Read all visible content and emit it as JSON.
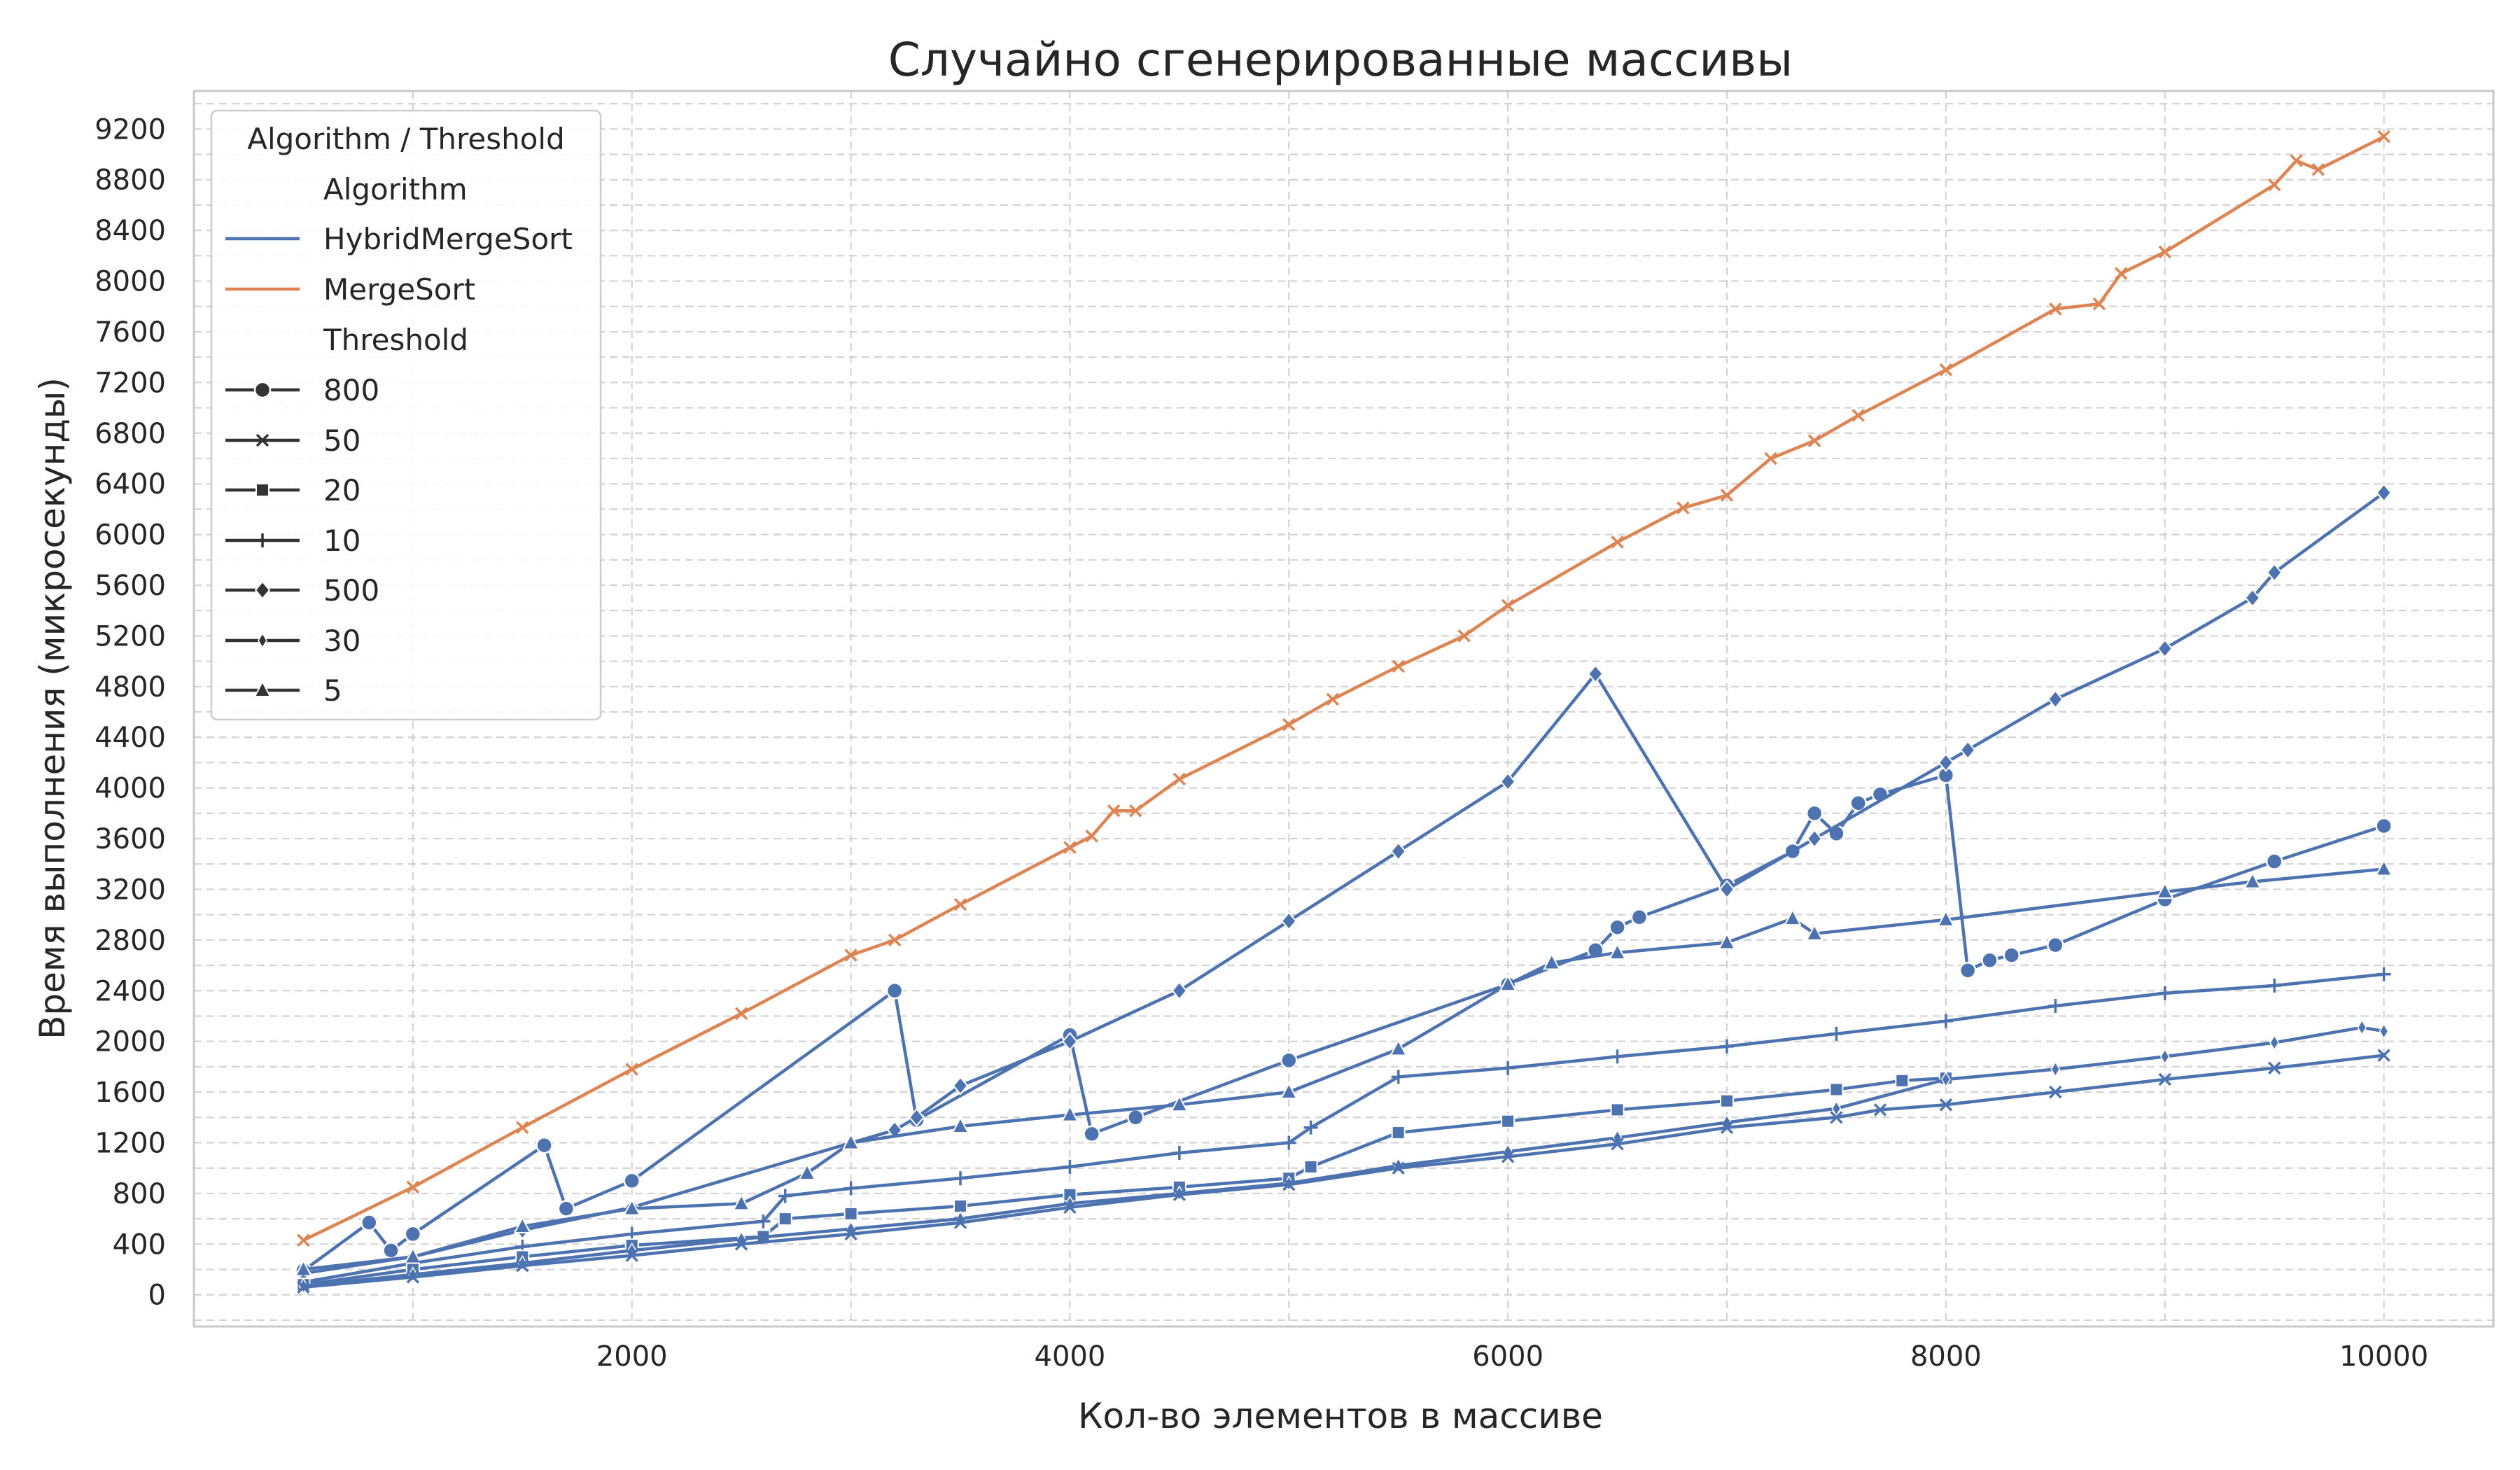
{
  "chart_data": {
    "type": "line",
    "title": "Случайно сгенерированные массивы",
    "xlabel": "Кол-во элементов в массиве",
    "ylabel": "Время выполнения (микросекунды)",
    "xlim": [
      0,
      10500
    ],
    "ylim": [
      -250,
      9500
    ],
    "x_ticks": [
      2000,
      4000,
      6000,
      8000,
      10000
    ],
    "y_ticks": [
      0,
      400,
      800,
      1200,
      1600,
      2000,
      2400,
      2800,
      3200,
      3600,
      4000,
      4400,
      4800,
      5200,
      5600,
      6000,
      6400,
      6800,
      7200,
      7600,
      8000,
      8400,
      8800,
      9200
    ],
    "grid": true,
    "legend": {
      "title": "Algorithm / Threshold",
      "placement": "top-left",
      "algorithm_header": "Algorithm",
      "threshold_header": "Threshold",
      "algorithms": [
        {
          "name": "HybridMergeSort",
          "color": "#4c72b0"
        },
        {
          "name": "MergeSort",
          "color": "#dd8452"
        }
      ],
      "thresholds": [
        {
          "name": "800",
          "marker": "circle"
        },
        {
          "name": "50",
          "marker": "x"
        },
        {
          "name": "20",
          "marker": "square"
        },
        {
          "name": "10",
          "marker": "plus"
        },
        {
          "name": "500",
          "marker": "diamond"
        },
        {
          "name": "30",
          "marker": "thin-diamond"
        },
        {
          "name": "5",
          "marker": "triangle"
        }
      ]
    },
    "series": [
      {
        "name": "MergeSort",
        "algorithm": "MergeSort",
        "threshold": "",
        "color": "#dd8452",
        "marker": "x",
        "x": [
          500,
          1000,
          1500,
          2000,
          2500,
          3000,
          3200,
          3500,
          4000,
          4100,
          4200,
          4300,
          4500,
          5000,
          5200,
          5500,
          5800,
          6000,
          6500,
          6800,
          7000,
          7200,
          7400,
          7600,
          8000,
          8500,
          8700,
          8800,
          9000,
          9500,
          9600,
          9700,
          10000
        ],
        "y": [
          430,
          850,
          1320,
          1780,
          2220,
          2680,
          2800,
          3080,
          3530,
          3620,
          3820,
          3820,
          4070,
          4500,
          4700,
          4960,
          5200,
          5440,
          5940,
          6210,
          6310,
          6600,
          6740,
          6940,
          7300,
          7780,
          7820,
          8060,
          8230,
          8760,
          8950,
          8880,
          9140
        ]
      },
      {
        "name": "HybridMergeSort 800",
        "algorithm": "HybridMergeSort",
        "threshold": "800",
        "color": "#4c72b0",
        "marker": "circle",
        "x": [
          500,
          800,
          900,
          1000,
          1600,
          1700,
          2000,
          3200,
          3300,
          4000,
          4100,
          4300,
          5000,
          6000,
          6400,
          6500,
          6600,
          7000,
          7300,
          7400,
          7500,
          7600,
          7700,
          8000,
          8100,
          8200,
          8300,
          8500,
          9000,
          9500,
          10000
        ],
        "y": [
          190,
          570,
          350,
          480,
          1180,
          680,
          900,
          2400,
          1380,
          2050,
          1270,
          1400,
          1850,
          2450,
          2720,
          2900,
          2980,
          3230,
          3500,
          3800,
          3640,
          3880,
          3950,
          4100,
          2560,
          2640,
          2680,
          2760,
          3120,
          3420,
          3700
        ]
      },
      {
        "name": "HybridMergeSort 500",
        "algorithm": "HybridMergeSort",
        "threshold": "500",
        "color": "#4c72b0",
        "marker": "diamond",
        "x": [
          500,
          1000,
          1500,
          2000,
          3200,
          3300,
          3500,
          4000,
          4500,
          5000,
          5500,
          6000,
          6400,
          7000,
          7400,
          8000,
          8100,
          8500,
          9000,
          9400,
          9500,
          10000
        ],
        "y": [
          170,
          300,
          510,
          690,
          1300,
          1400,
          1650,
          2000,
          2400,
          2950,
          3500,
          4050,
          4900,
          3200,
          3600,
          4200,
          4300,
          4700,
          5100,
          5500,
          5700,
          6330
        ]
      },
      {
        "name": "HybridMergeSort 5",
        "algorithm": "HybridMergeSort",
        "threshold": "5",
        "color": "#4c72b0",
        "marker": "triangle",
        "x": [
          500,
          1000,
          1500,
          2000,
          2500,
          2800,
          3000,
          3500,
          4000,
          4500,
          5000,
          5500,
          6000,
          6200,
          6500,
          7000,
          7300,
          7400,
          8000,
          9000,
          9400,
          10000
        ],
        "y": [
          200,
          300,
          540,
          680,
          720,
          960,
          1200,
          1330,
          1420,
          1500,
          1600,
          1940,
          2450,
          2620,
          2700,
          2780,
          2970,
          2850,
          2960,
          3180,
          3260,
          3360
        ]
      },
      {
        "name": "HybridMergeSort 10",
        "algorithm": "HybridMergeSort",
        "threshold": "10",
        "color": "#4c72b0",
        "marker": "plus",
        "x": [
          500,
          1000,
          1500,
          2000,
          2600,
          2700,
          3000,
          3500,
          4000,
          4500,
          5000,
          5100,
          5500,
          6000,
          6500,
          7000,
          7500,
          8000,
          8500,
          9000,
          9500,
          10000
        ],
        "y": [
          100,
          250,
          380,
          480,
          580,
          780,
          840,
          920,
          1010,
          1120,
          1200,
          1320,
          1720,
          1790,
          1880,
          1960,
          2060,
          2160,
          2280,
          2380,
          2440,
          2530
        ]
      },
      {
        "name": "HybridMergeSort 20",
        "algorithm": "HybridMergeSort",
        "threshold": "20",
        "color": "#4c72b0",
        "marker": "square",
        "x": [
          500,
          1000,
          1500,
          2000,
          2600,
          2700,
          3000,
          3500,
          4000,
          4500,
          5000,
          5100,
          5500,
          6000,
          6500,
          7000,
          7500,
          7800,
          8000
        ],
        "y": [
          80,
          200,
          300,
          390,
          460,
          600,
          640,
          700,
          790,
          850,
          920,
          1010,
          1280,
          1370,
          1460,
          1530,
          1620,
          1690,
          1710
        ]
      },
      {
        "name": "HybridMergeSort 30",
        "algorithm": "HybridMergeSort",
        "threshold": "30",
        "color": "#4c72b0",
        "marker": "thin-diamond",
        "x": [
          500,
          1000,
          1500,
          2000,
          2500,
          3000,
          3500,
          4000,
          4500,
          5000,
          5500,
          6000,
          6500,
          7000,
          7500,
          8000,
          8500,
          9000,
          9500,
          9900,
          10000
        ],
        "y": [
          70,
          160,
          250,
          350,
          440,
          520,
          600,
          720,
          800,
          880,
          1020,
          1130,
          1240,
          1360,
          1470,
          1700,
          1780,
          1880,
          1990,
          2110,
          2080
        ]
      },
      {
        "name": "HybridMergeSort 50",
        "algorithm": "HybridMergeSort",
        "threshold": "50",
        "color": "#4c72b0",
        "marker": "x",
        "x": [
          500,
          1000,
          1500,
          2000,
          2500,
          3000,
          3500,
          4000,
          4500,
          5000,
          5500,
          6000,
          6500,
          7000,
          7500,
          7700,
          8000,
          8500,
          9000,
          9500,
          10000
        ],
        "y": [
          60,
          140,
          230,
          310,
          400,
          480,
          570,
          690,
          790,
          870,
          1000,
          1090,
          1190,
          1320,
          1400,
          1460,
          1500,
          1600,
          1700,
          1790,
          1890
        ]
      }
    ]
  }
}
